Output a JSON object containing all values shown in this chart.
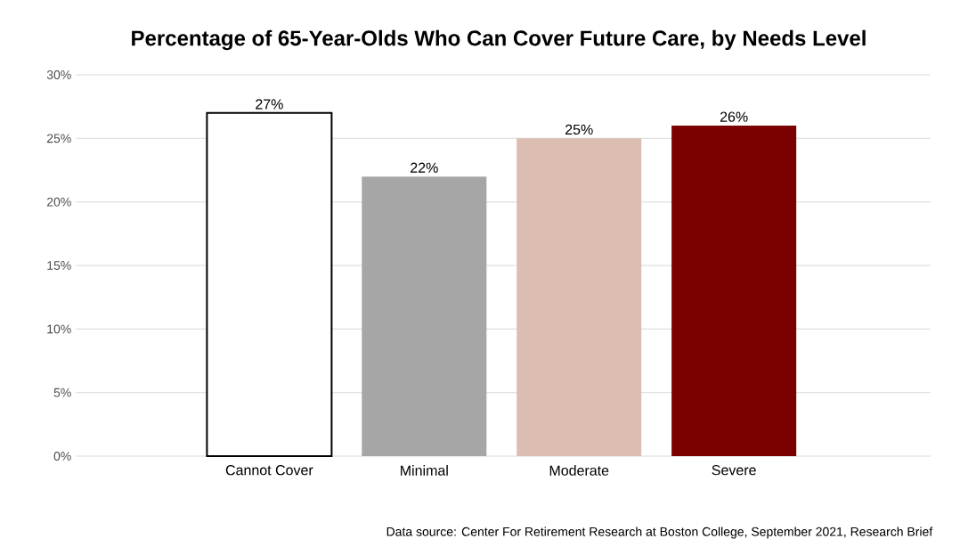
{
  "chart_data": {
    "type": "bar",
    "title": "Percentage of 65-Year-Olds Who Can Cover Future Care, by Needs Level",
    "categories": [
      "Cannot Cover",
      "Minimal",
      "Moderate",
      "Severe"
    ],
    "values": [
      27,
      22,
      25,
      26
    ],
    "colors": [
      "#ffffff",
      "#a6a6a6",
      "#dbbdb2",
      "#7b0000"
    ],
    "value_labels": [
      "27%",
      "22%",
      "25%",
      "26%"
    ],
    "ylim": [
      0,
      30
    ],
    "yticks": [
      {
        "value": 0,
        "label": "0%"
      },
      {
        "value": 5,
        "label": "5%"
      },
      {
        "value": 10,
        "label": "10%"
      },
      {
        "value": 15,
        "label": "15%"
      },
      {
        "value": 20,
        "label": "20%"
      },
      {
        "value": 25,
        "label": "25%"
      },
      {
        "value": 30,
        "label": "30%"
      }
    ],
    "grid": "y",
    "annotations": [
      "Data source: Center For Retirement Research at Boston College, September 2021, Research Brief"
    ]
  }
}
